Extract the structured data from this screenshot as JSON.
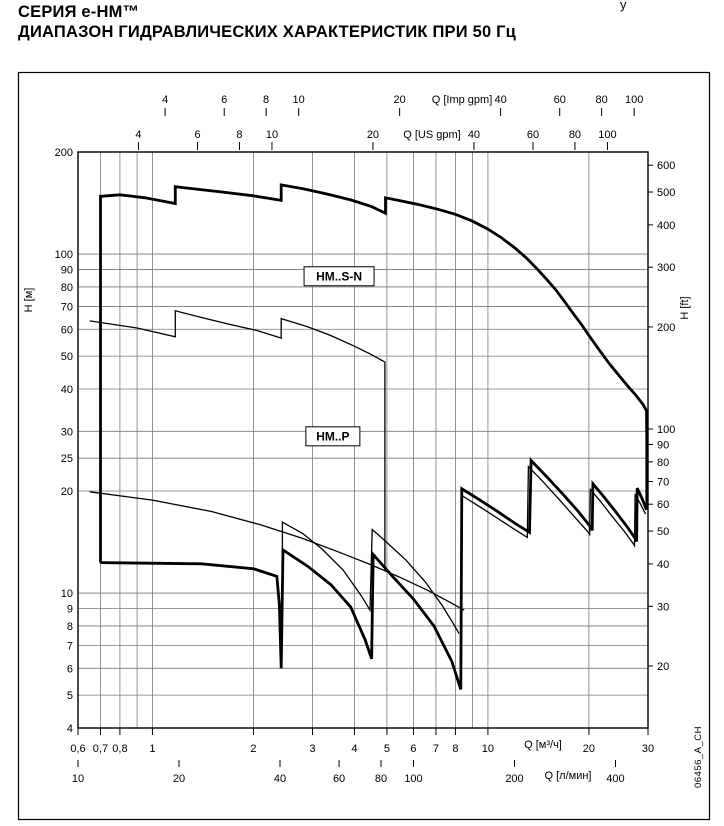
{
  "header": {
    "line1": "СЕРИЯ  e-HM™",
    "line2": "ДИАПАЗОН ГИДРАВЛИЧЕСКИХ ХАРАКТЕРИСТИК ПРИ 50 Гц",
    "corner_fragment": "у"
  },
  "side_code": "06456_A_CH",
  "chart_data": {
    "type": "line",
    "title": "Диапазон гидравлических характеристик при 50 Гц",
    "x_scale": "log",
    "y_scale": "log",
    "x_range_m3h": [
      0.6,
      30
    ],
    "y_range_m": [
      4,
      200
    ],
    "grid": true,
    "gridlines": {
      "x_m3h": [
        0.6,
        0.7,
        0.8,
        0.9,
        1,
        2,
        3,
        4,
        5,
        6,
        7,
        8,
        9,
        10,
        20,
        30
      ],
      "y_m": [
        4,
        5,
        6,
        7,
        8,
        9,
        10,
        20,
        25,
        30,
        40,
        50,
        60,
        70,
        80,
        90,
        100,
        200
      ]
    },
    "axes": {
      "left": {
        "label": "H [м]",
        "ticks": [
          {
            "v": 200,
            "label": "200"
          },
          {
            "v": 100,
            "label": "100"
          },
          {
            "v": 90,
            "label": "90"
          },
          {
            "v": 80,
            "label": "80"
          },
          {
            "v": 70,
            "label": "70"
          },
          {
            "v": 60,
            "label": "60"
          },
          {
            "v": 50,
            "label": "50"
          },
          {
            "v": 40,
            "label": "40"
          },
          {
            "v": 30,
            "label": "30"
          },
          {
            "v": 25,
            "label": "25"
          },
          {
            "v": 20,
            "label": "20"
          },
          {
            "v": 10,
            "label": "10"
          },
          {
            "v": 9,
            "label": "9"
          },
          {
            "v": 8,
            "label": "8"
          },
          {
            "v": 7,
            "label": "7"
          },
          {
            "v": 6,
            "label": "6"
          },
          {
            "v": 5,
            "label": "5"
          },
          {
            "v": 4,
            "label": "4"
          }
        ]
      },
      "right": {
        "label": "H [ft]",
        "factor_to_m": 0.3048,
        "values": [
          600,
          500,
          400,
          300,
          200,
          100,
          90,
          80,
          70,
          60,
          50,
          40,
          30,
          20
        ]
      },
      "bottom_m3h": {
        "label": "Q [м³/ч]",
        "ticks": [
          {
            "v": 0.6,
            "label": "0,6"
          },
          {
            "v": 0.7,
            "label": "0,7"
          },
          {
            "v": 0.8,
            "label": "0,8"
          },
          {
            "v": 1,
            "label": "1"
          },
          {
            "v": 2,
            "label": "2"
          },
          {
            "v": 3,
            "label": "3"
          },
          {
            "v": 4,
            "label": "4"
          },
          {
            "v": 5,
            "label": "5"
          },
          {
            "v": 6,
            "label": "6"
          },
          {
            "v": 7,
            "label": "7"
          },
          {
            "v": 8,
            "label": "8"
          },
          {
            "v": 10,
            "label": "10"
          },
          {
            "v": 20,
            "label": "20"
          },
          {
            "v": 30,
            "label": "30"
          }
        ]
      },
      "bottom_lmin": {
        "label": "Q [л/мин]",
        "factor_to_m3h": 0.06,
        "values": [
          10,
          20,
          40,
          60,
          80,
          100,
          200,
          400
        ]
      },
      "top_imp": {
        "label": "Q [Imp gpm]",
        "factor_to_m3h": 0.272766,
        "values": [
          4,
          6,
          8,
          10,
          20,
          40,
          60,
          80,
          100
        ]
      },
      "top_us": {
        "label": "Q [US gpm]",
        "factor_to_m3h": 0.227125,
        "values": [
          4,
          6,
          8,
          10,
          20,
          40,
          60,
          80,
          100
        ]
      }
    },
    "annotations": [
      {
        "text": "HM..S-N",
        "q": 3.6,
        "h": 86
      },
      {
        "text": "HM..P",
        "q": 3.45,
        "h": 29
      }
    ],
    "series": [
      {
        "name": "HM..S-N envelope – upper boundary",
        "weight": "thick",
        "points": [
          [
            0.7,
            12.3
          ],
          [
            0.7,
            148
          ],
          [
            0.8,
            149.5
          ],
          [
            0.95,
            146.5
          ],
          [
            1.17,
            141
          ],
          [
            1.17,
            158
          ],
          [
            1.35,
            155.5
          ],
          [
            1.6,
            152.5
          ],
          [
            2.0,
            148.5
          ],
          [
            2.42,
            144
          ],
          [
            2.42,
            160
          ],
          [
            2.8,
            156
          ],
          [
            3.3,
            150.5
          ],
          [
            3.9,
            144.5
          ],
          [
            4.5,
            138
          ],
          [
            4.95,
            132
          ],
          [
            4.95,
            146.5
          ],
          [
            5.6,
            143
          ],
          [
            6.3,
            139.5
          ],
          [
            7.1,
            135.5
          ],
          [
            8,
            131
          ],
          [
            9,
            125
          ],
          [
            10,
            118.5
          ],
          [
            11,
            111.5
          ],
          [
            12,
            104.5
          ],
          [
            13,
            97.5
          ],
          [
            14,
            90.5
          ],
          [
            15,
            84
          ],
          [
            16,
            78
          ],
          [
            17,
            72
          ],
          [
            18,
            66.5
          ],
          [
            19,
            62
          ],
          [
            20,
            57.5
          ],
          [
            21.5,
            52
          ],
          [
            23,
            47.5
          ],
          [
            24.5,
            44
          ],
          [
            26,
            41
          ],
          [
            27.5,
            38.5
          ],
          [
            29,
            36
          ],
          [
            29.7,
            34.5
          ],
          [
            29.75,
            28
          ],
          [
            29.75,
            17.8
          ]
        ]
      },
      {
        "name": "HM..S-N envelope – lower boundary",
        "weight": "thick",
        "points": [
          [
            0.7,
            12.3
          ],
          [
            1.4,
            12.2
          ],
          [
            2.0,
            11.8
          ],
          [
            2.35,
            11.2
          ],
          [
            2.39,
            9.2
          ],
          [
            2.42,
            6.0
          ],
          [
            2.45,
            13.4
          ],
          [
            2.9,
            12.0
          ],
          [
            3.4,
            10.6
          ],
          [
            3.9,
            9.1
          ],
          [
            4.3,
            7.3
          ],
          [
            4.5,
            6.4
          ],
          [
            4.55,
            13.0
          ],
          [
            5.2,
            11.2
          ],
          [
            6.0,
            9.6
          ],
          [
            6.9,
            8.0
          ],
          [
            7.8,
            6.3
          ],
          [
            8.2,
            5.4
          ],
          [
            8.3,
            5.2
          ],
          [
            8.36,
            20.3
          ],
          [
            9.4,
            18.9
          ],
          [
            10.6,
            17.5
          ],
          [
            12,
            16.1
          ],
          [
            13.3,
            15.1
          ],
          [
            13.45,
            24.6
          ],
          [
            15,
            22.0
          ],
          [
            16.8,
            19.5
          ],
          [
            18.6,
            17.4
          ],
          [
            20.3,
            15.6
          ],
          [
            20.45,
            15.3
          ],
          [
            20.55,
            21.0
          ],
          [
            22,
            19.4
          ],
          [
            24,
            17.4
          ],
          [
            26,
            15.7
          ],
          [
            27.6,
            14.4
          ],
          [
            27.75,
            14.2
          ],
          [
            27.85,
            20.4
          ],
          [
            28.8,
            19.0
          ],
          [
            29.7,
            17.6
          ]
        ]
      },
      {
        "name": "HM..P envelope – upper boundary",
        "weight": "thin",
        "points": [
          [
            0.65,
            63.5
          ],
          [
            0.9,
            60.5
          ],
          [
            1.17,
            57
          ],
          [
            1.17,
            68
          ],
          [
            1.4,
            65
          ],
          [
            1.7,
            62
          ],
          [
            2.05,
            59.5
          ],
          [
            2.42,
            56.5
          ],
          [
            2.42,
            64.5
          ],
          [
            2.9,
            61
          ],
          [
            3.4,
            57.5
          ],
          [
            4.0,
            53.5
          ],
          [
            4.5,
            50.5
          ],
          [
            4.93,
            48
          ],
          [
            4.93,
            11.6
          ]
        ]
      },
      {
        "name": "HM..P envelope – middle boundary",
        "weight": "thin",
        "points": [
          [
            0.65,
            19.9
          ],
          [
            1.0,
            18.8
          ],
          [
            1.5,
            17.4
          ],
          [
            2.1,
            15.9
          ],
          [
            2.8,
            14.5
          ],
          [
            3.6,
            13.2
          ],
          [
            4.5,
            12.1
          ],
          [
            5.5,
            11.1
          ],
          [
            6.6,
            10.2
          ],
          [
            7.7,
            9.4
          ],
          [
            8.5,
            8.9
          ]
        ]
      },
      {
        "name": "HM..P envelope – lower boundary",
        "weight": "thin",
        "points": [
          [
            2.44,
            8.3
          ],
          [
            2.44,
            16.2
          ],
          [
            2.8,
            15.0
          ],
          [
            3.2,
            13.5
          ],
          [
            3.7,
            11.7
          ],
          [
            4.2,
            9.8
          ],
          [
            4.45,
            8.9
          ],
          [
            4.52,
            15.4
          ],
          [
            5.0,
            14.1
          ],
          [
            5.7,
            12.5
          ],
          [
            6.5,
            10.8
          ],
          [
            7.3,
            9.2
          ],
          [
            7.9,
            8.1
          ],
          [
            8.2,
            7.6
          ]
        ]
      },
      {
        "name": "HM..S-N inner boundary (high flow)",
        "weight": "thin",
        "points": [
          [
            8.36,
            19.4
          ],
          [
            9.6,
            17.8
          ],
          [
            11,
            16.3
          ],
          [
            12.4,
            15.1
          ],
          [
            13.1,
            14.6
          ],
          [
            13.2,
            23.6
          ],
          [
            14.6,
            21.3
          ],
          [
            16.3,
            18.9
          ],
          [
            18,
            16.9
          ],
          [
            19.8,
            15.2
          ],
          [
            20.1,
            14.9
          ],
          [
            20.2,
            20.2
          ],
          [
            21.6,
            18.7
          ],
          [
            23.5,
            16.8
          ],
          [
            25.5,
            15.2
          ],
          [
            27.1,
            14.0
          ],
          [
            27.35,
            13.8
          ],
          [
            27.45,
            19.6
          ],
          [
            28.5,
            18.3
          ],
          [
            29.5,
            17.1
          ]
        ]
      }
    ]
  }
}
